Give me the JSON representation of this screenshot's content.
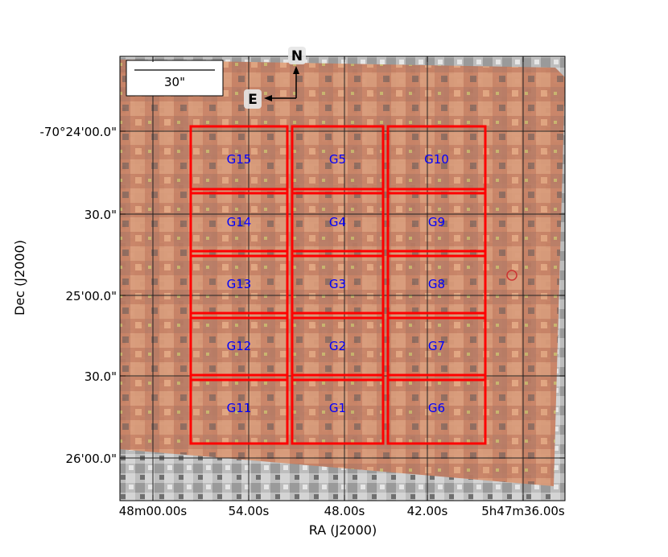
{
  "map": {
    "x_axis_label": "RA (J2000)",
    "y_axis_label": "Dec (J2000)",
    "x_tick_labels": [
      "48m00.00s",
      "54.00s",
      "48.00s",
      "42.00s",
      "5h47m36.00s"
    ],
    "y_tick_labels": [
      "-70°24'00.0\"",
      "30.0\"",
      "25'00.0\"",
      "30.0\"",
      "26'00.0\""
    ],
    "scale_bar_label": "30\"",
    "compass_north": "N",
    "compass_east": "E",
    "fields": [
      {
        "label": "G15",
        "row": 0,
        "col": 0
      },
      {
        "label": "G5",
        "row": 0,
        "col": 1
      },
      {
        "label": "G10",
        "row": 0,
        "col": 2
      },
      {
        "label": "G14",
        "row": 1,
        "col": 0
      },
      {
        "label": "G4",
        "row": 1,
        "col": 1
      },
      {
        "label": "G9",
        "row": 1,
        "col": 2
      },
      {
        "label": "G13",
        "row": 2,
        "col": 0
      },
      {
        "label": "G3",
        "row": 2,
        "col": 1
      },
      {
        "label": "G8",
        "row": 2,
        "col": 2
      },
      {
        "label": "G12",
        "row": 3,
        "col": 0
      },
      {
        "label": "G2",
        "row": 3,
        "col": 1
      },
      {
        "label": "G7",
        "row": 3,
        "col": 2
      },
      {
        "label": "G11",
        "row": 4,
        "col": 0
      },
      {
        "label": "G1",
        "row": 4,
        "col": 1
      },
      {
        "label": "G6",
        "row": 4,
        "col": 2
      }
    ],
    "colors": {
      "field_outline": "#ff0000",
      "field_label": "#0000ff",
      "grid": "#222222",
      "overlay": "#d98a6a",
      "marker": "#cc3333"
    }
  }
}
